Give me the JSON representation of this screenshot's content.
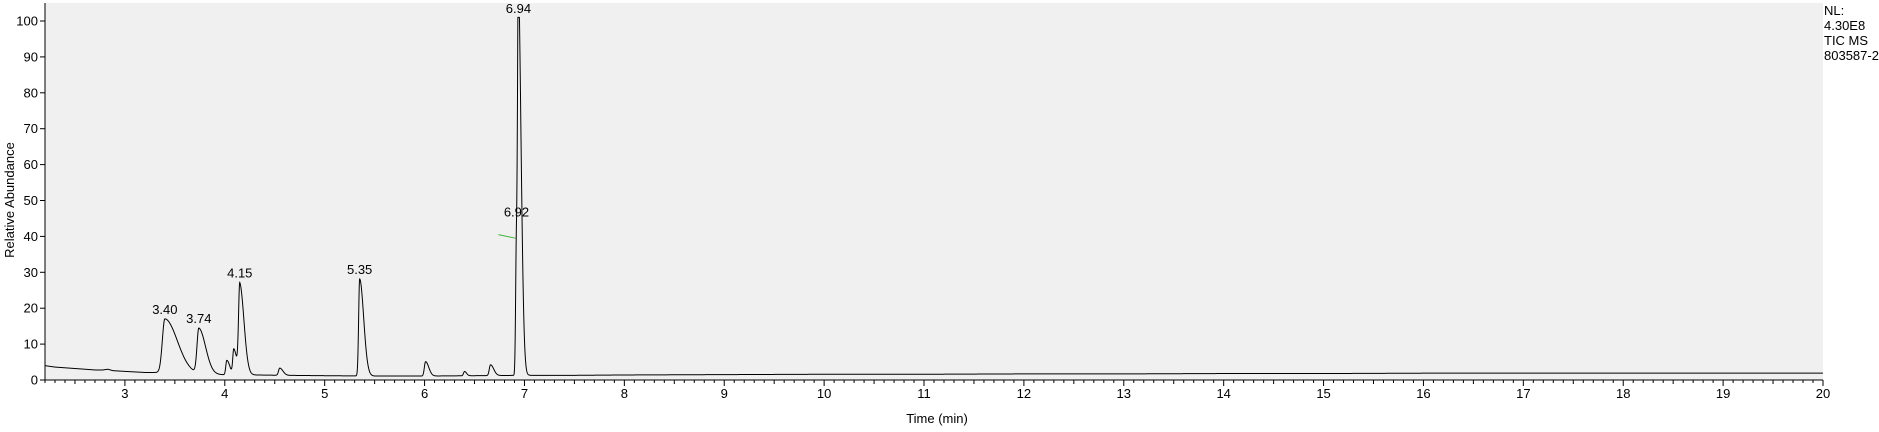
{
  "info": {
    "nl_label": "NL:",
    "nl_value": "4.30E8",
    "trace": "TIC  MS",
    "file": "803587-2"
  },
  "colors": {
    "plot_background": "#f0f0f0",
    "trace": "#000000",
    "integration_line": "#3cb43c"
  },
  "chart_data": {
    "type": "line",
    "xlabel": "Time (min)",
    "ylabel": "Relative Abundance",
    "xlim": [
      2.2,
      20
    ],
    "ylim": [
      0,
      100
    ],
    "x_ticks": [
      3,
      4,
      5,
      6,
      7,
      8,
      9,
      10,
      11,
      12,
      13,
      14,
      15,
      16,
      17,
      18,
      19,
      20
    ],
    "y_ticks": [
      0,
      10,
      20,
      30,
      40,
      50,
      60,
      70,
      80,
      90,
      100
    ],
    "grid": false,
    "baseline": [
      [
        2.2,
        4.0
      ],
      [
        2.3,
        3.6
      ],
      [
        2.5,
        3.2
      ],
      [
        2.7,
        2.8
      ],
      [
        2.78,
        2.8
      ],
      [
        2.83,
        3.0
      ],
      [
        2.88,
        2.6
      ],
      [
        3.0,
        2.4
      ],
      [
        3.2,
        2.1
      ],
      [
        3.36,
        2.1
      ],
      [
        3.6,
        1.7
      ],
      [
        3.9,
        1.5
      ],
      [
        4.3,
        1.4
      ],
      [
        4.6,
        1.3
      ],
      [
        5.0,
        1.2
      ],
      [
        5.5,
        1.1
      ],
      [
        6.0,
        1.1
      ],
      [
        6.5,
        1.2
      ],
      [
        7.0,
        1.3
      ],
      [
        7.5,
        1.3
      ],
      [
        8.0,
        1.4
      ],
      [
        9.0,
        1.5
      ],
      [
        10.0,
        1.6
      ],
      [
        11.0,
        1.6
      ],
      [
        12.0,
        1.7
      ],
      [
        13.0,
        1.7
      ],
      [
        14.0,
        1.8
      ],
      [
        15.0,
        1.8
      ],
      [
        16.0,
        1.9
      ],
      [
        17.0,
        1.9
      ],
      [
        18.0,
        1.9
      ],
      [
        19.0,
        1.9
      ],
      [
        20.0,
        1.9
      ]
    ],
    "peaks": [
      {
        "rt": 3.4,
        "height": 15.0,
        "width": 0.025,
        "tail": 0.1,
        "label": "3.40"
      },
      {
        "rt": 3.74,
        "height": 12.5,
        "width": 0.018,
        "tail": 0.05,
        "label": "3.74"
      },
      {
        "rt": 4.02,
        "height": 4.0,
        "width": 0.01,
        "tail": 0.02
      },
      {
        "rt": 4.09,
        "height": 7.0,
        "width": 0.01,
        "tail": 0.02
      },
      {
        "rt": 4.15,
        "height": 24.8,
        "width": 0.012,
        "tail": 0.03,
        "label": "4.15"
      },
      {
        "rt": 4.55,
        "height": 2.0,
        "width": 0.012,
        "tail": 0.02
      },
      {
        "rt": 5.35,
        "height": 27.0,
        "width": 0.01,
        "tail": 0.03,
        "label": "5.35"
      },
      {
        "rt": 6.01,
        "height": 4.0,
        "width": 0.012,
        "tail": 0.02
      },
      {
        "rt": 6.4,
        "height": 1.2,
        "width": 0.01,
        "tail": 0.01
      },
      {
        "rt": 6.66,
        "height": 3.0,
        "width": 0.012,
        "tail": 0.02
      },
      {
        "rt": 6.92,
        "height": 38.5,
        "width": 0.008,
        "tail": 0.008,
        "label": "6.92"
      },
      {
        "rt": 6.94,
        "height": 99.0,
        "width": 0.008,
        "tail": 0.02,
        "label": "6.94"
      }
    ],
    "integration": {
      "x": [
        6.74,
        6.91
      ],
      "y": [
        40.5,
        39.5
      ]
    }
  }
}
